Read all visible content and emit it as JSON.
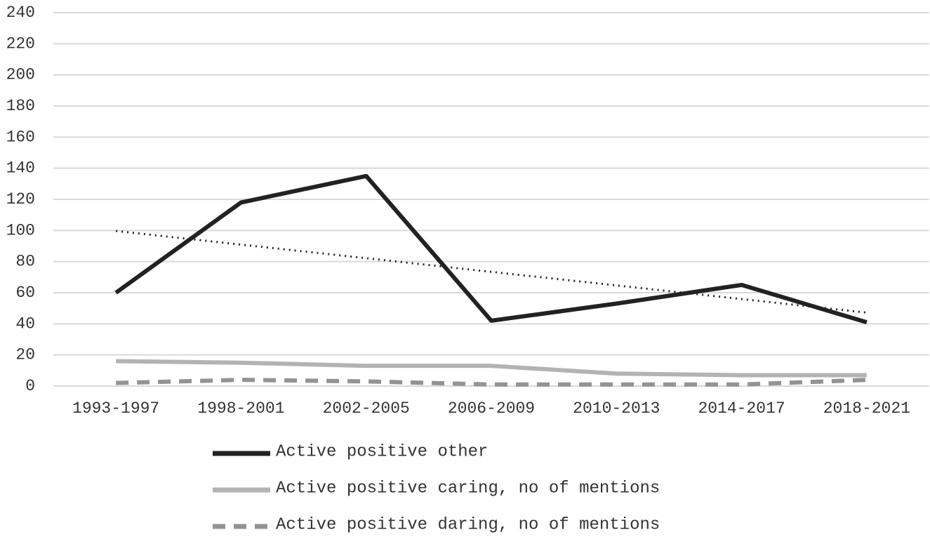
{
  "chart_data": {
    "type": "line",
    "categories": [
      "1993-1997",
      "1998-2001",
      "2002-2005",
      "2006-2009",
      "2010-2013",
      "2014-2017",
      "2018-2021"
    ],
    "series": [
      {
        "name": "Active positive other",
        "color": "#222222",
        "style": "solid",
        "values": [
          60,
          118,
          135,
          42,
          53,
          65,
          41
        ]
      },
      {
        "name": "Active positive caring, no of mentions",
        "color": "#b3b3b3",
        "style": "solid",
        "values": [
          16,
          15,
          13,
          13,
          8,
          7,
          7
        ]
      },
      {
        "name": "Active positive daring, no of mentions",
        "color": "#939393",
        "style": "dashed",
        "values": [
          2,
          4,
          3,
          1,
          1,
          1,
          4
        ]
      }
    ],
    "trendline": {
      "color": "#222222",
      "style": "dotted",
      "values": [
        99.7,
        90.9,
        82.2,
        73.4,
        64.7,
        55.9,
        47.2
      ]
    },
    "ylim": [
      0,
      240
    ],
    "yticks": [
      0,
      20,
      40,
      60,
      80,
      100,
      120,
      140,
      160,
      180,
      200,
      220,
      240
    ],
    "grid": true,
    "legend": "bottom"
  }
}
